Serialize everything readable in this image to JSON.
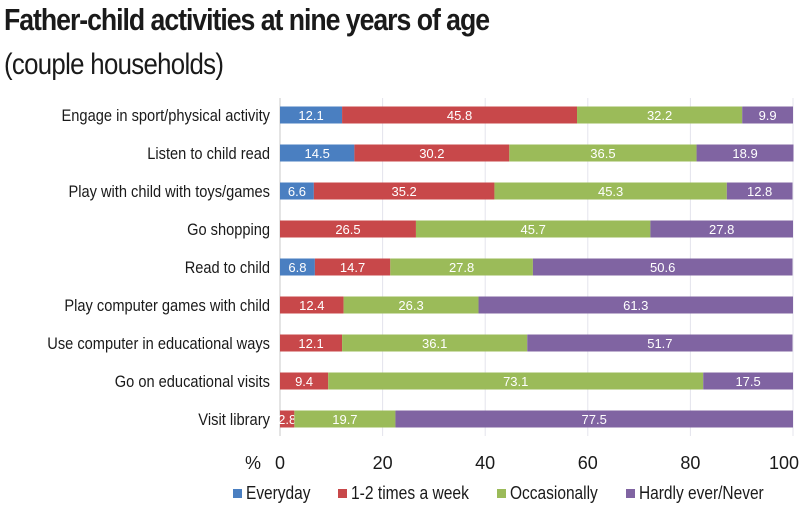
{
  "chart_data": {
    "type": "bar",
    "orientation": "horizontal",
    "stacked": true,
    "title": "Father-child activities at nine years of age",
    "subtitle": "(couple households)",
    "xlabel": "%",
    "ylabel": "",
    "xlim": [
      0,
      100
    ],
    "xticks": [
      "0",
      "20",
      "40",
      "60",
      "80",
      "100"
    ],
    "xtick_values": [
      0,
      20,
      40,
      60,
      80,
      100
    ],
    "grid": true,
    "legend_position": "bottom",
    "categories": [
      "Engage in sport/physical activity",
      "Listen to child read",
      "Play with child with toys/games",
      "Go shopping",
      "Read to child",
      "Play computer games with child",
      "Use computer in educational ways",
      "Go on educational visits",
      "Visit library"
    ],
    "series": [
      {
        "name": "Everyday",
        "color": "#4a7fc1",
        "values": [
          12.1,
          14.5,
          6.6,
          0,
          6.8,
          0,
          0,
          0,
          0
        ]
      },
      {
        "name": "1-2 times a week",
        "color": "#c8484a",
        "values": [
          45.8,
          30.2,
          35.2,
          26.5,
          14.7,
          12.4,
          12.1,
          9.4,
          2.8
        ]
      },
      {
        "name": "Occasionally",
        "color": "#9bbb59",
        "values": [
          32.2,
          36.5,
          45.3,
          45.7,
          27.8,
          26.3,
          36.1,
          73.1,
          19.7
        ]
      },
      {
        "name": "Hardly ever/Never",
        "color": "#8064a2",
        "values": [
          9.9,
          18.9,
          12.8,
          27.8,
          50.6,
          61.3,
          51.7,
          17.5,
          77.5
        ]
      }
    ]
  }
}
